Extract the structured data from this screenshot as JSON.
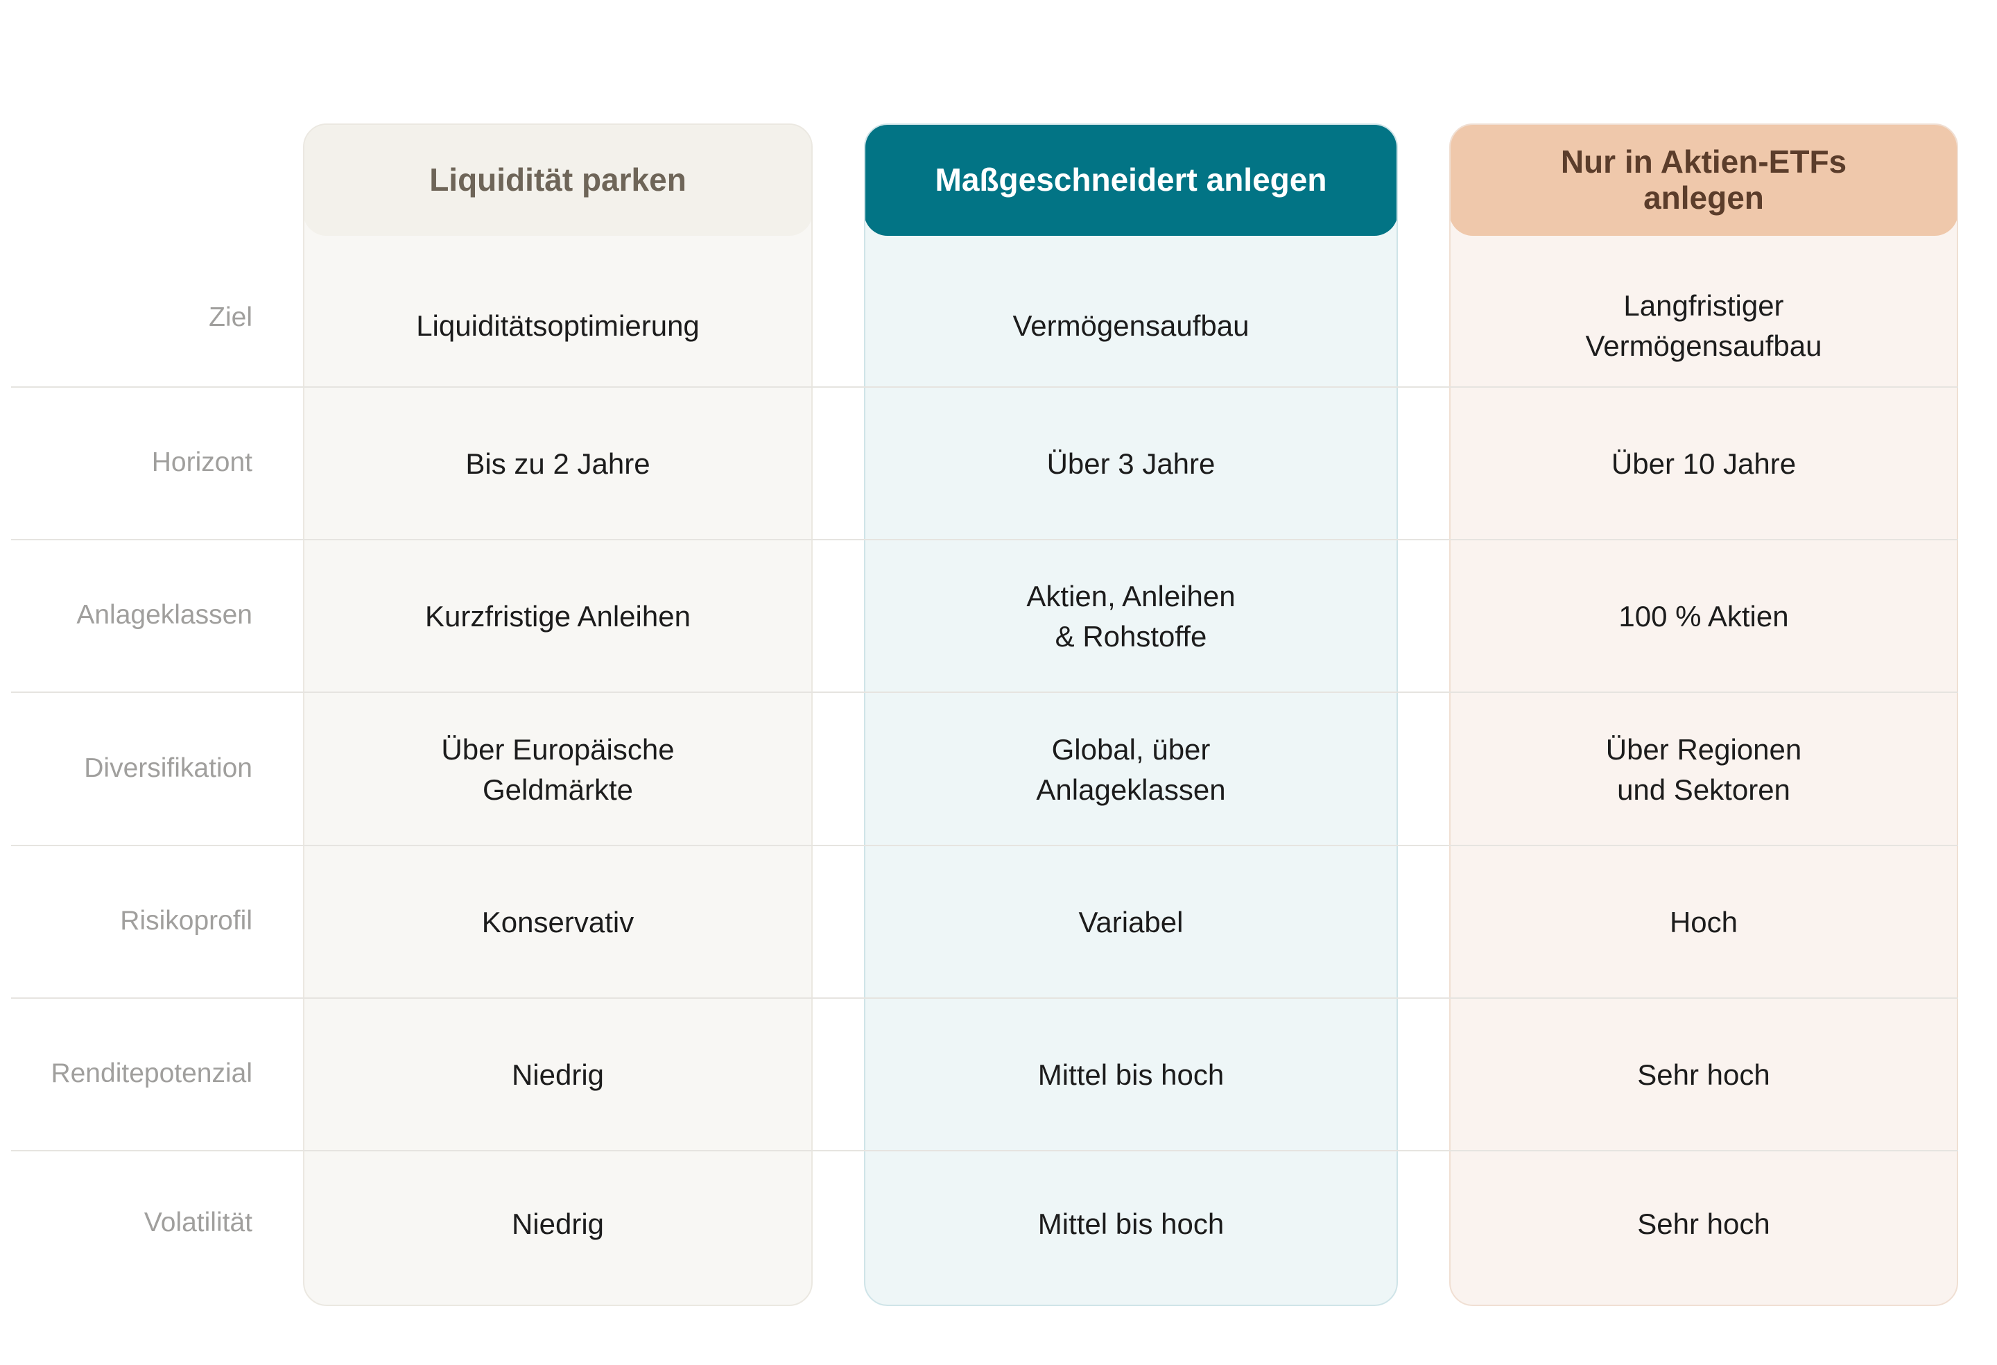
{
  "row_labels": [
    "Ziel",
    "Horizont",
    "Anlageklassen",
    "Diversifikation",
    "Risikoprofil",
    "Renditepotenzial",
    "Volatilität"
  ],
  "columns": [
    {
      "title": "Liquidität parken",
      "bg": "#f3f1eb",
      "cells": [
        "Liquiditätsoptimierung",
        "Bis zu 2 Jahre",
        "Kurzfristige Anleihen",
        "Über Europäische\nGeldmärkte",
        "Konservativ",
        "Niedrig",
        "Niedrig"
      ]
    },
    {
      "title": "Maßgeschneidert anlegen",
      "bg": "#027485",
      "cells": [
        "Vermögensaufbau",
        "Über 3 Jahre",
        "Aktien, Anleihen\n& Rohstoffe",
        "Global, über\nAnlageklassen",
        "Variabel",
        "Mittel bis hoch",
        "Mittel bis hoch"
      ]
    },
    {
      "title": "Nur in Aktien-ETFs\nanlegen",
      "bg": "#efc8ab",
      "cells": [
        "Langfristiger\nVermögensaufbau",
        "Über 10 Jahre",
        "100 % Aktien",
        "Über Regionen\nund Sektoren",
        "Hoch",
        "Sehr hoch",
        "Sehr hoch"
      ]
    }
  ]
}
